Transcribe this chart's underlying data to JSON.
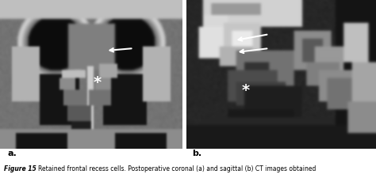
{
  "title": "Figure 15",
  "caption": "   Retained frontal recess cells. Postoperative coronal (a) and sagittal (b) CT images obtained",
  "label_a": "a.",
  "label_b": "b.",
  "bg_color": "#ffffff",
  "fig_width": 4.74,
  "fig_height": 2.26,
  "arrow_color": "white",
  "star_color": "white"
}
